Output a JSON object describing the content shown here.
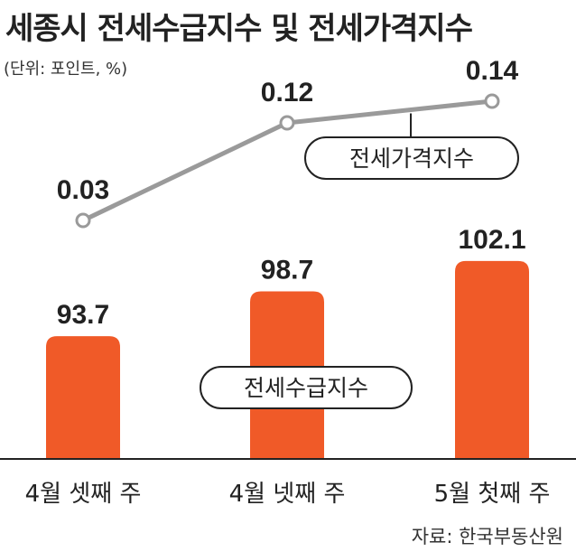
{
  "header": {
    "title": "세종시 전세수급지수 및 전세가격지수",
    "unit": "(단위: 포인트, %)"
  },
  "footer": {
    "source": "자료: 한국부동산원"
  },
  "chart_data": {
    "type": "bar",
    "categories": [
      "4월 셋째 주",
      "4월 넷째 주",
      "5월 첫째 주"
    ],
    "series": [
      {
        "name": "전세수급지수",
        "type": "bar",
        "values": [
          93.7,
          98.7,
          102.1
        ],
        "labels": [
          "93.7",
          "98.7",
          "102.1"
        ],
        "color": "#f05a28"
      },
      {
        "name": "전세가격지수",
        "type": "line",
        "values": [
          0.03,
          0.12,
          0.14
        ],
        "labels": [
          "0.03",
          "0.12",
          "0.14"
        ],
        "color": "#9a9a9a"
      }
    ],
    "colors": {
      "axis": "#222222",
      "text": "#222222",
      "background": "#ffffff"
    }
  }
}
